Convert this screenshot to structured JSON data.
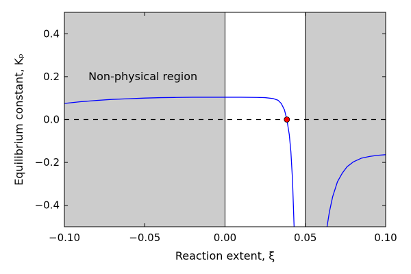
{
  "chart_data": {
    "type": "line",
    "xlabel": "Reaction extent, ξ",
    "ylabel": "Equilibrium constant, Kₚ",
    "xlim": [
      -0.1,
      0.1
    ],
    "ylim": [
      -0.5,
      0.5
    ],
    "xticks": [
      -0.1,
      -0.05,
      0.0,
      0.05,
      0.1
    ],
    "xtick_labels": [
      "−0.10",
      "−0.05",
      "0.00",
      "0.05",
      "0.10"
    ],
    "yticks": [
      -0.4,
      -0.2,
      0.0,
      0.2,
      0.4
    ],
    "ytick_labels": [
      "−0.4",
      "−0.2",
      "0.0",
      "0.2",
      "0.4"
    ],
    "grid": false,
    "shaded_regions": [
      {
        "x": [
          -0.1,
          0.0
        ],
        "color": "#cccccc"
      },
      {
        "x": [
          0.05,
          0.1
        ],
        "color": "#cccccc"
      }
    ],
    "vertical_lines": [
      0.0,
      0.05
    ],
    "annotation": {
      "text": "Non-physical region",
      "x": -0.085,
      "y": 0.2
    },
    "reference_line": {
      "y": 0.0,
      "style": "dashed",
      "color": "#000000"
    },
    "root_point": {
      "x": 0.0385,
      "y": 0.0,
      "color": "#ff0000"
    },
    "series": [
      {
        "color": "#0000ff",
        "segments": [
          {
            "x": [
              -0.1,
              -0.09,
              -0.08,
              -0.07,
              -0.06,
              -0.05,
              -0.04,
              -0.03,
              -0.02,
              -0.01,
              0.0,
              0.01,
              0.02,
              0.025,
              0.03,
              0.033,
              0.035,
              0.037,
              0.0385,
              0.04,
              0.041,
              0.042,
              0.043
            ],
            "y": [
              0.075,
              0.083,
              0.089,
              0.094,
              0.097,
              0.1,
              0.102,
              0.103,
              0.104,
              0.104,
              0.104,
              0.104,
              0.103,
              0.102,
              0.098,
              0.09,
              0.075,
              0.045,
              0.0,
              -0.07,
              -0.15,
              -0.28,
              -0.5
            ]
          },
          {
            "x": [
              0.0635,
              0.065,
              0.067,
              0.07,
              0.073,
              0.076,
              0.08,
              0.085,
              0.09,
              0.095,
              0.1
            ],
            "y": [
              -0.5,
              -0.43,
              -0.36,
              -0.29,
              -0.25,
              -0.22,
              -0.197,
              -0.18,
              -0.172,
              -0.167,
              -0.164
            ]
          }
        ]
      }
    ]
  }
}
